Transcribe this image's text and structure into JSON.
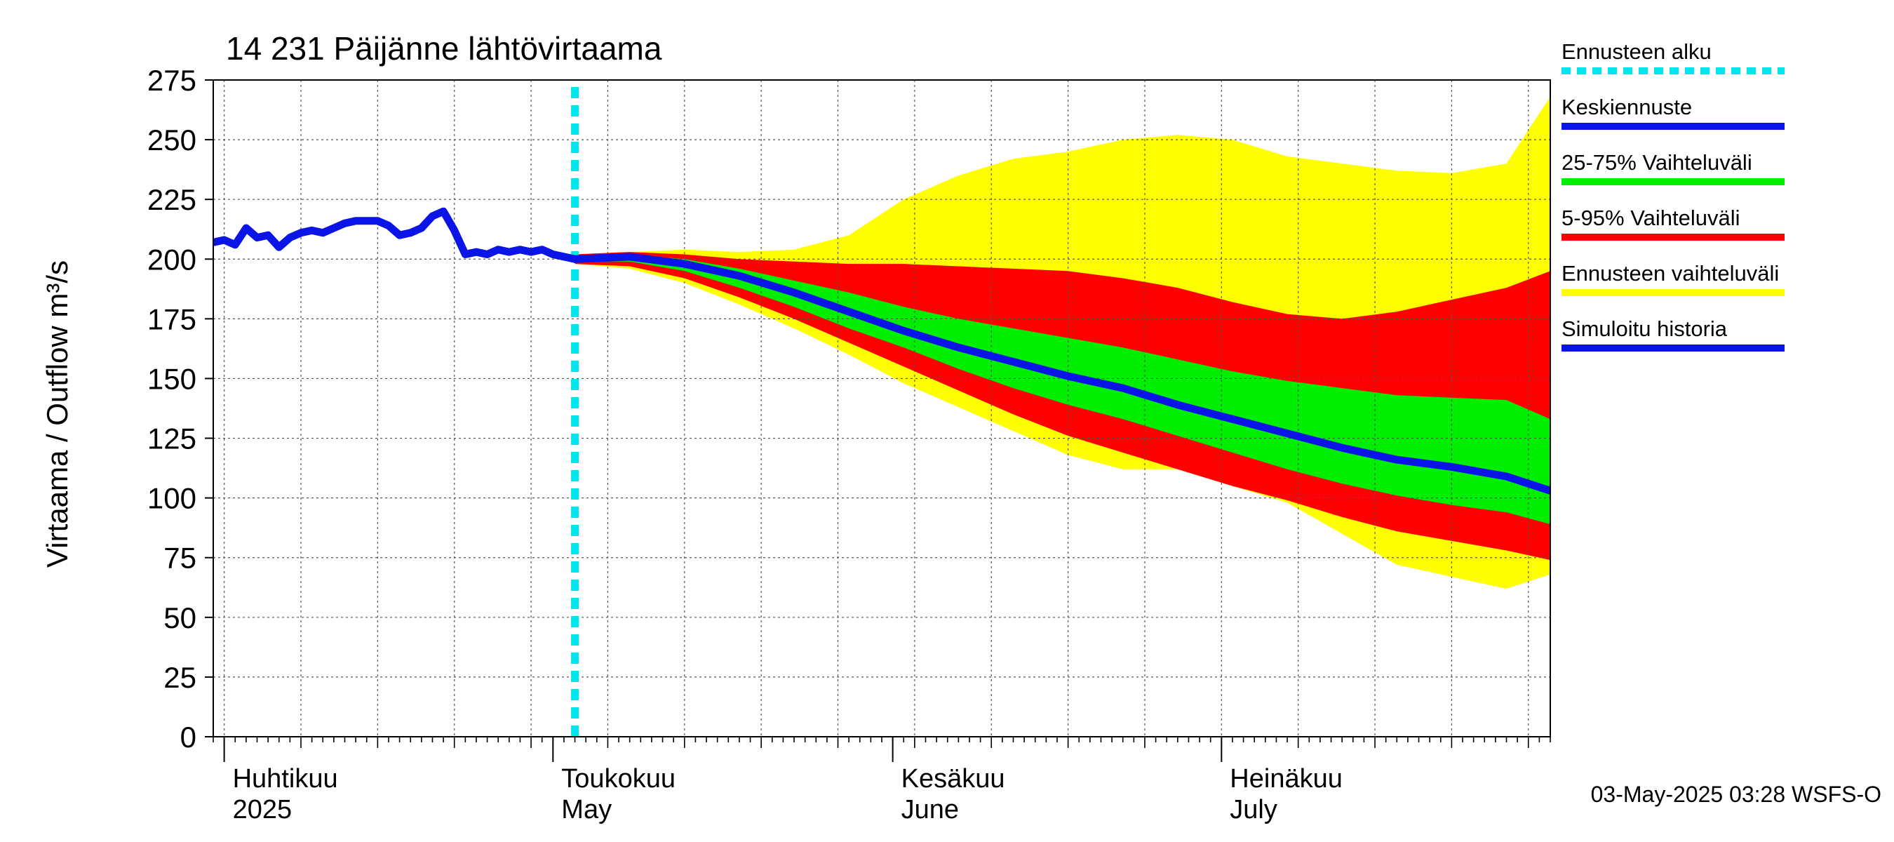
{
  "chart_data": {
    "type": "area",
    "title": "14 231 Päijänne lähtövirtaama",
    "ylabel": "Virtaama / Outflow    m³/s",
    "ylim": [
      0,
      275
    ],
    "yticks": [
      0,
      25,
      50,
      75,
      100,
      125,
      150,
      175,
      200,
      225,
      250,
      275
    ],
    "xlim": [
      "2025-03-31",
      "2025-07-31"
    ],
    "grid": true,
    "month_labels": [
      {
        "date": "2025-04-01",
        "fi": "Huhtikuu",
        "en": "2025"
      },
      {
        "date": "2025-05-01",
        "fi": "Toukokuu",
        "en": "May"
      },
      {
        "date": "2025-06-01",
        "fi": "Kesäkuu",
        "en": "June"
      },
      {
        "date": "2025-07-01",
        "fi": "Heinäkuu",
        "en": "July"
      }
    ],
    "forecast_start": "2025-05-03",
    "legend": {
      "placement": "right",
      "items": [
        {
          "label": "Ennusteen alku",
          "color": "#00e5ee",
          "style": "dashed"
        },
        {
          "label": "Keskiennuste",
          "color": "#0a14e6",
          "style": "line"
        },
        {
          "label": "25-75% Vaihteluväli",
          "color": "#00ee00",
          "style": "line"
        },
        {
          "label": "5-95% Vaihteluväli",
          "color": "#ff0000",
          "style": "line"
        },
        {
          "label": "Ennusteen vaihteluväli",
          "color": "#ffff00",
          "style": "line"
        },
        {
          "label": "Simuloitu historia",
          "color": "#0a14e6",
          "style": "line"
        }
      ]
    },
    "history": {
      "name": "Simuloitu historia",
      "x": [
        "2025-03-31",
        "2025-04-01",
        "2025-04-02",
        "2025-04-03",
        "2025-04-04",
        "2025-04-05",
        "2025-04-06",
        "2025-04-07",
        "2025-04-08",
        "2025-04-09",
        "2025-04-10",
        "2025-04-11",
        "2025-04-12",
        "2025-04-13",
        "2025-04-14",
        "2025-04-15",
        "2025-04-16",
        "2025-04-17",
        "2025-04-18",
        "2025-04-19",
        "2025-04-20",
        "2025-04-21",
        "2025-04-22",
        "2025-04-23",
        "2025-04-24",
        "2025-04-25",
        "2025-04-26",
        "2025-04-27",
        "2025-04-28",
        "2025-04-29",
        "2025-04-30",
        "2025-05-01",
        "2025-05-02",
        "2025-05-03"
      ],
      "y": [
        207,
        208,
        206,
        213,
        209,
        210,
        205,
        209,
        211,
        212,
        211,
        213,
        215,
        216,
        216,
        216,
        214,
        210,
        211,
        213,
        218,
        220,
        212,
        202,
        203,
        202,
        204,
        203,
        204,
        203,
        204,
        202,
        201,
        200
      ]
    },
    "forecast": {
      "x": [
        "2025-05-03",
        "2025-05-08",
        "2025-05-13",
        "2025-05-18",
        "2025-05-23",
        "2025-05-28",
        "2025-06-02",
        "2025-06-07",
        "2025-06-12",
        "2025-06-17",
        "2025-06-22",
        "2025-06-27",
        "2025-07-02",
        "2025-07-07",
        "2025-07-12",
        "2025-07-17",
        "2025-07-22",
        "2025-07-27",
        "2025-07-31"
      ],
      "median": [
        200,
        201,
        198,
        193,
        186,
        178,
        170,
        163,
        157,
        151,
        146,
        139,
        133,
        127,
        121,
        116,
        113,
        109,
        103
      ],
      "p25": [
        199,
        199,
        195,
        188,
        180,
        171,
        163,
        154,
        146,
        139,
        133,
        126,
        119,
        112,
        106,
        101,
        97,
        94,
        89
      ],
      "p75": [
        201,
        202,
        200,
        196,
        191,
        186,
        180,
        175,
        171,
        167,
        163,
        158,
        153,
        149,
        146,
        143,
        142,
        141,
        133
      ],
      "p05": [
        198,
        197,
        192,
        184,
        175,
        165,
        155,
        145,
        135,
        126,
        119,
        112,
        105,
        99,
        92,
        86,
        82,
        78,
        74
      ],
      "p95": [
        202,
        203,
        202,
        200,
        199,
        198,
        198,
        197,
        196,
        195,
        192,
        188,
        182,
        177,
        175,
        178,
        183,
        188,
        195
      ],
      "min": [
        198,
        196,
        190,
        181,
        171,
        160,
        148,
        138,
        128,
        118,
        112,
        112,
        105,
        98,
        85,
        72,
        67,
        62,
        68
      ],
      "max": [
        202,
        203,
        204,
        203,
        204,
        210,
        225,
        235,
        242,
        245,
        250,
        252,
        250,
        243,
        240,
        237,
        236,
        240,
        268
      ]
    }
  },
  "footer": {
    "timestamp": "03-May-2025 03:28 WSFS-O"
  }
}
